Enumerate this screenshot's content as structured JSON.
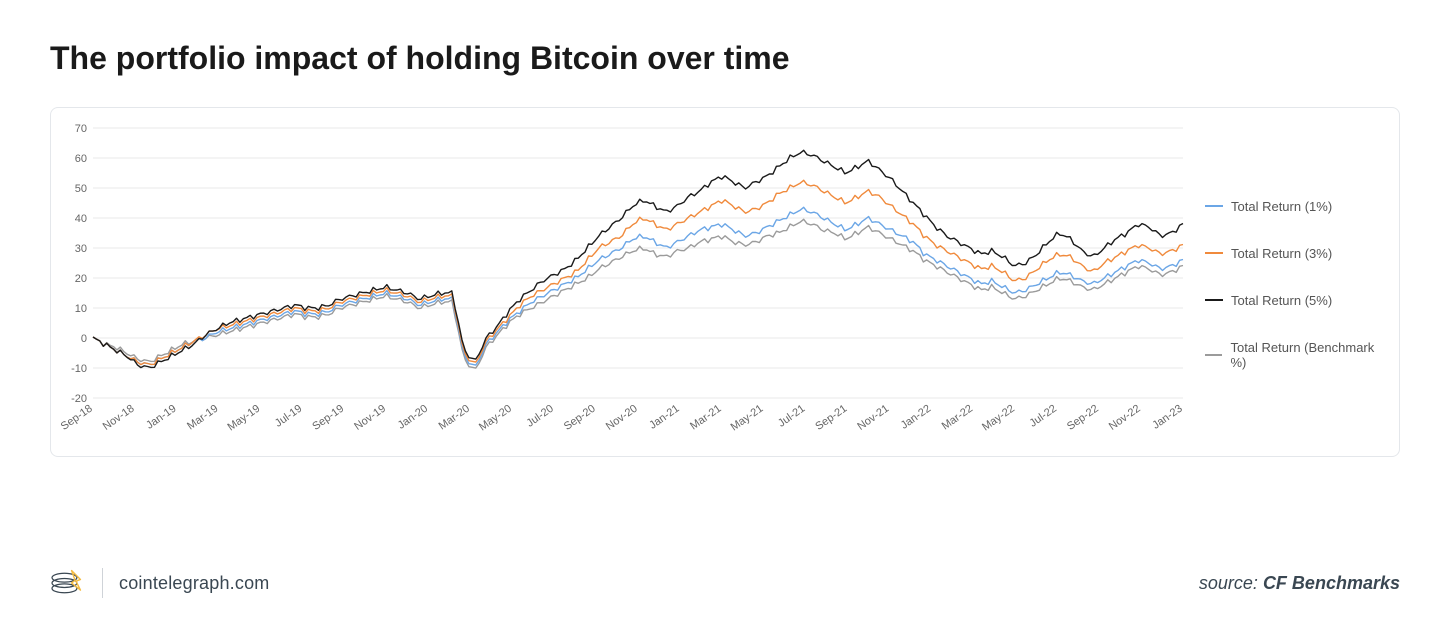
{
  "title": "The portfolio impact of holding Bitcoin over time",
  "chart": {
    "type": "line",
    "background_color": "#ffffff",
    "border_color": "#e4e7eb",
    "grid_color": "#e8e8e8",
    "ylim": [
      -20,
      70
    ],
    "ytick_step": 10,
    "yticks": [
      -20,
      -10,
      0,
      10,
      20,
      30,
      40,
      50,
      60,
      70
    ],
    "x_labels": [
      "Sep-18",
      "Nov-18",
      "Jan-19",
      "Mar-19",
      "May-19",
      "Jul-19",
      "Sep-19",
      "Nov-19",
      "Jan-20",
      "Mar-20",
      "May-20",
      "Jul-20",
      "Sep-20",
      "Nov-20",
      "Jan-21",
      "Mar-21",
      "May-21",
      "Jul-21",
      "Sep-21",
      "Nov-21",
      "Jan-22",
      "Mar-22",
      "May-22",
      "Jul-22",
      "Sep-22",
      "Nov-22",
      "Jan-23"
    ],
    "label_fontsize": 11,
    "line_width": 1.4,
    "series": [
      {
        "name": "Total Return (1%)",
        "color": "#6ba6e6",
        "data": [
          0,
          -2,
          -4,
          -6,
          -8,
          -9,
          -7,
          -5,
          -3,
          -1,
          0,
          2,
          3,
          4,
          5,
          6,
          7,
          8,
          9,
          8,
          8,
          9,
          11,
          12,
          13,
          14,
          15,
          14,
          13,
          11,
          12,
          13,
          13,
          -6,
          -10,
          -2,
          2,
          6,
          9,
          12,
          14,
          16,
          18,
          20,
          23,
          26,
          28,
          30,
          33,
          34,
          32,
          30,
          32,
          34,
          36,
          37,
          38,
          36,
          34,
          35,
          37,
          39,
          41,
          43,
          42,
          40,
          38,
          36,
          38,
          40,
          38,
          36,
          34,
          32,
          28,
          26,
          24,
          22,
          20,
          18,
          19,
          17,
          15,
          16,
          18,
          20,
          22,
          21,
          19,
          18,
          20,
          22,
          24,
          26,
          25,
          23,
          24,
          26
        ]
      },
      {
        "name": "Total Return (3%)",
        "color": "#f08a3c",
        "data": [
          0,
          -2,
          -4,
          -6,
          -8,
          -9,
          -7,
          -5,
          -3,
          -1,
          1,
          3,
          4,
          5,
          6,
          7,
          8,
          9,
          10,
          9,
          9,
          10,
          12,
          13,
          14,
          15,
          16,
          15,
          14,
          12,
          13,
          14,
          14,
          -5,
          -9,
          -1,
          3,
          7,
          11,
          14,
          16,
          18,
          20,
          22,
          26,
          30,
          32,
          34,
          38,
          40,
          38,
          36,
          38,
          40,
          42,
          44,
          46,
          44,
          42,
          43,
          45,
          48,
          50,
          52,
          51,
          49,
          47,
          45,
          47,
          49,
          47,
          44,
          41,
          38,
          34,
          31,
          29,
          27,
          25,
          23,
          24,
          22,
          19,
          20,
          23,
          26,
          28,
          27,
          24,
          22,
          25,
          27,
          29,
          31,
          30,
          28,
          29,
          31
        ]
      },
      {
        "name": "Total Return (5%)",
        "color": "#1a1a1a",
        "data": [
          0,
          -2,
          -4,
          -6,
          -9,
          -10,
          -8,
          -6,
          -4,
          -2,
          1,
          3,
          5,
          6,
          7,
          8,
          9,
          10,
          11,
          10,
          10,
          11,
          13,
          14,
          15,
          16,
          17,
          16,
          15,
          13,
          14,
          15,
          15,
          -4,
          -8,
          0,
          4,
          9,
          13,
          16,
          19,
          21,
          23,
          26,
          30,
          34,
          37,
          40,
          44,
          46,
          44,
          42,
          44,
          47,
          49,
          52,
          54,
          52,
          50,
          52,
          54,
          57,
          60,
          62,
          61,
          59,
          57,
          55,
          57,
          59,
          56,
          53,
          49,
          45,
          41,
          37,
          34,
          32,
          30,
          28,
          29,
          27,
          24,
          25,
          28,
          32,
          35,
          33,
          29,
          27,
          30,
          33,
          35,
          38,
          37,
          34,
          35,
          38
        ]
      },
      {
        "name": "Total Return (Benchmark %)",
        "color": "#9b9b9b",
        "data": [
          0,
          -2,
          -3,
          -5,
          -7,
          -8,
          -6,
          -4,
          -2,
          -1,
          0,
          1,
          2,
          3,
          4,
          5,
          6,
          7,
          8,
          7,
          7,
          8,
          10,
          11,
          12,
          13,
          14,
          13,
          12,
          10,
          11,
          12,
          12,
          -7,
          -11,
          -3,
          1,
          5,
          8,
          10,
          12,
          14,
          16,
          18,
          20,
          23,
          25,
          27,
          29,
          30,
          28,
          27,
          29,
          30,
          32,
          33,
          34,
          32,
          31,
          32,
          34,
          35,
          37,
          39,
          38,
          36,
          35,
          33,
          35,
          37,
          35,
          33,
          31,
          29,
          26,
          24,
          22,
          20,
          18,
          16,
          17,
          15,
          13,
          14,
          16,
          18,
          20,
          19,
          17,
          16,
          18,
          20,
          22,
          24,
          23,
          21,
          22,
          24
        ]
      }
    ],
    "legend_labels": {
      "s0": "Total Return (1%)",
      "s1": "Total Return (3%)",
      "s2": "Total Return (5%)",
      "s3": "Total Return (Benchmark %)"
    }
  },
  "footer": {
    "url": "cointelegraph.com",
    "source_prefix": "source: ",
    "source_name": "CF Benchmarks"
  }
}
